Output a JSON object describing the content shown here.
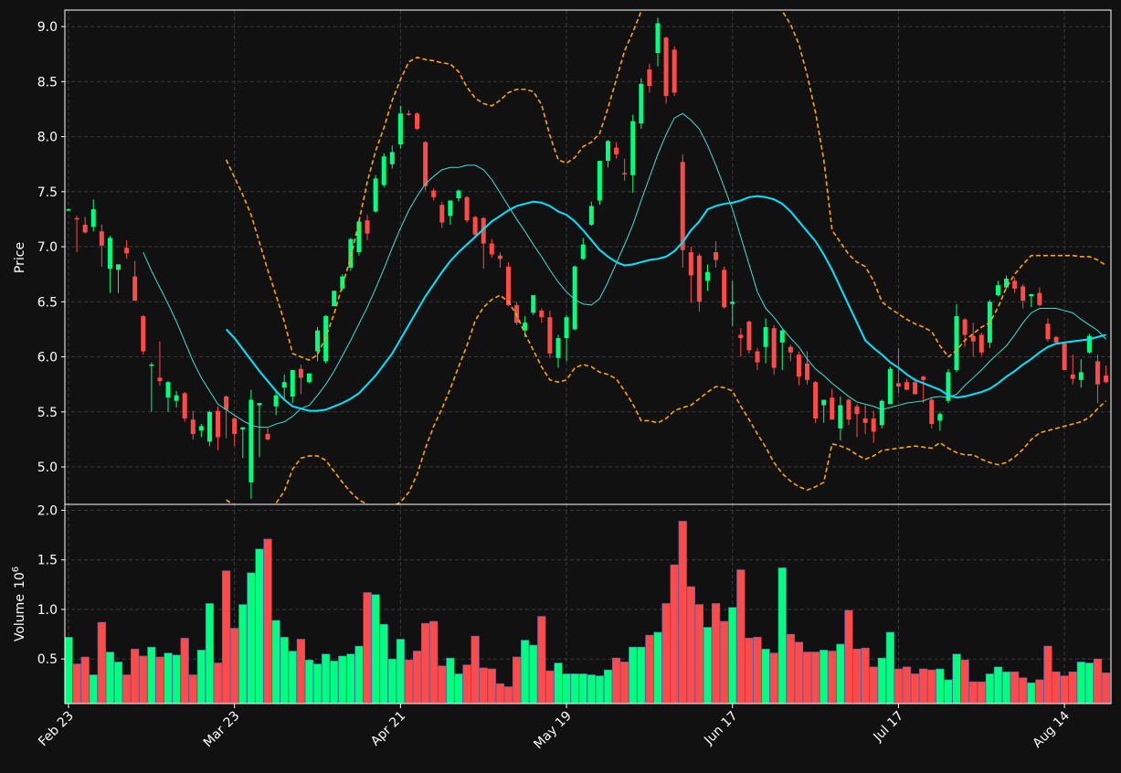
{
  "chart_data": {
    "type": "candlestick",
    "colors": {
      "background": "#111111",
      "up": "#00ff7f",
      "down": "#ff4a4a",
      "ma_short": "#40e0d0",
      "ma_long": "#00e5ff",
      "bands": "#ffa500",
      "grid": "#3a3a3a",
      "axis": "#ffffff"
    },
    "price_panel": {
      "ylabel": "Price",
      "ylim": [
        4.66,
        9.15
      ],
      "yticks": [
        "5.0",
        "5.5",
        "6.0",
        "6.5",
        "7.0",
        "7.5",
        "8.0",
        "8.5",
        "9.0"
      ],
      "grid": true
    },
    "volume_panel": {
      "ylabel": "Volume",
      "ylabel_exponent": "10",
      "ylabel_power": "6",
      "ylim": [
        0.05,
        2.06
      ],
      "yticks": [
        "0.5",
        "1.0",
        "1.5",
        "2.0"
      ],
      "grid": true
    },
    "x_axis": {
      "tick_labels": [
        "Feb 23",
        "Mar 23",
        "Apr 21",
        "May 19",
        "Jun 17",
        "Jul 17",
        "Aug 14"
      ],
      "tick_indices": [
        0,
        20,
        40,
        60,
        80,
        100,
        120
      ]
    },
    "candles": [
      [
        7.34,
        7.35,
        7.33,
        7.34
      ],
      [
        7.26,
        7.28,
        6.95,
        7.25
      ],
      [
        7.2,
        7.27,
        7.12,
        7.13
      ],
      [
        7.18,
        7.43,
        7.14,
        7.34
      ],
      [
        7.14,
        7.2,
        6.82,
        7.01
      ],
      [
        6.8,
        7.1,
        6.58,
        7.08
      ],
      [
        6.79,
        6.84,
        6.58,
        6.84
      ],
      [
        6.99,
        7.06,
        6.89,
        6.94
      ],
      [
        6.73,
        6.87,
        6.52,
        6.51
      ],
      [
        6.37,
        6.38,
        6.02,
        6.05
      ],
      [
        5.93,
        5.95,
        5.5,
        5.93
      ],
      [
        5.81,
        6.14,
        5.74,
        5.78
      ],
      [
        5.63,
        5.78,
        5.5,
        5.77
      ],
      [
        5.6,
        5.69,
        5.54,
        5.65
      ],
      [
        5.67,
        5.68,
        5.41,
        5.44
      ],
      [
        5.43,
        5.51,
        5.25,
        5.3
      ],
      [
        5.33,
        5.39,
        5.27,
        5.37
      ],
      [
        5.23,
        5.51,
        5.19,
        5.5
      ],
      [
        5.51,
        5.55,
        5.15,
        5.27
      ],
      [
        5.64,
        5.65,
        5.26,
        5.52
      ],
      [
        5.44,
        5.45,
        5.19,
        5.3
      ],
      [
        5.34,
        5.36,
        5.08,
        5.36
      ],
      [
        4.86,
        5.7,
        4.71,
        5.61
      ],
      [
        5.56,
        5.57,
        5.09,
        5.58
      ],
      [
        5.3,
        5.35,
        5.24,
        5.25
      ],
      [
        5.55,
        5.7,
        5.47,
        5.65
      ],
      [
        5.72,
        5.84,
        5.6,
        5.77
      ],
      [
        5.64,
        5.88,
        5.58,
        5.88
      ],
      [
        5.89,
        5.93,
        5.66,
        5.81
      ],
      [
        5.77,
        5.84,
        5.76,
        5.85
      ],
      [
        6.05,
        6.27,
        5.96,
        6.24
      ],
      [
        5.96,
        6.38,
        5.94,
        6.37
      ],
      [
        6.46,
        6.6,
        6.46,
        6.6
      ],
      [
        6.62,
        6.75,
        6.6,
        6.73
      ],
      [
        6.81,
        7.08,
        6.78,
        7.07
      ],
      [
        6.95,
        7.24,
        6.92,
        7.23
      ],
      [
        7.24,
        7.29,
        7.06,
        7.12
      ],
      [
        7.32,
        7.65,
        7.31,
        7.62
      ],
      [
        7.56,
        7.85,
        7.54,
        7.82
      ],
      [
        7.75,
        7.92,
        7.71,
        7.86
      ],
      [
        7.93,
        8.28,
        7.89,
        8.21
      ],
      [
        8.21,
        8.24,
        8.19,
        8.2
      ],
      [
        8.21,
        8.22,
        8.06,
        8.07
      ],
      [
        7.95,
        7.96,
        7.51,
        7.55
      ],
      [
        7.51,
        7.53,
        7.42,
        7.45
      ],
      [
        7.38,
        7.41,
        7.17,
        7.22
      ],
      [
        7.28,
        7.42,
        7.2,
        7.42
      ],
      [
        7.44,
        7.52,
        7.41,
        7.51
      ],
      [
        7.45,
        7.46,
        7.22,
        7.24
      ],
      [
        7.27,
        7.28,
        7.08,
        7.11
      ],
      [
        7.26,
        7.27,
        6.8,
        7.03
      ],
      [
        7.03,
        7.07,
        6.9,
        6.93
      ],
      [
        6.92,
        6.95,
        6.81,
        6.89
      ],
      [
        6.82,
        6.86,
        6.46,
        6.47
      ],
      [
        6.47,
        6.5,
        6.29,
        6.31
      ],
      [
        6.24,
        6.37,
        6.18,
        6.31
      ],
      [
        6.4,
        6.56,
        6.38,
        6.56
      ],
      [
        6.42,
        6.44,
        6.31,
        6.36
      ],
      [
        6.36,
        6.42,
        5.99,
        6.03
      ],
      [
        5.99,
        6.2,
        5.9,
        6.17
      ],
      [
        6.17,
        6.38,
        5.96,
        6.36
      ],
      [
        6.25,
        6.83,
        6.24,
        6.82
      ],
      [
        6.89,
        7.08,
        6.88,
        7.02
      ],
      [
        7.2,
        7.41,
        7.19,
        7.37
      ],
      [
        7.42,
        7.78,
        7.38,
        7.78
      ],
      [
        7.78,
        7.97,
        7.72,
        7.96
      ],
      [
        7.9,
        7.95,
        7.8,
        7.84
      ],
      [
        7.67,
        7.8,
        7.6,
        7.66
      ],
      [
        7.65,
        8.2,
        7.49,
        8.14
      ],
      [
        8.12,
        8.53,
        8.07,
        8.48
      ],
      [
        8.61,
        8.66,
        8.4,
        8.46
      ],
      [
        8.76,
        9.08,
        8.64,
        9.03
      ],
      [
        8.9,
        8.91,
        8.3,
        8.37
      ],
      [
        8.79,
        8.82,
        8.37,
        8.4
      ],
      [
        7.77,
        7.84,
        6.81,
        6.97
      ],
      [
        6.95,
        7.0,
        6.49,
        6.74
      ],
      [
        6.92,
        6.94,
        6.41,
        6.5
      ],
      [
        6.69,
        6.84,
        6.6,
        6.77
      ],
      [
        6.95,
        7.05,
        6.81,
        6.88
      ],
      [
        6.79,
        6.82,
        6.44,
        6.45
      ],
      [
        6.48,
        6.69,
        6.28,
        6.5
      ],
      [
        6.2,
        6.26,
        6.0,
        6.17
      ],
      [
        6.32,
        6.33,
        6.03,
        6.06
      ],
      [
        6.05,
        6.08,
        5.88,
        5.95
      ],
      [
        6.09,
        6.35,
        5.94,
        6.27
      ],
      [
        6.26,
        6.29,
        5.84,
        5.9
      ],
      [
        6.13,
        6.25,
        5.88,
        6.24
      ],
      [
        6.09,
        6.11,
        5.96,
        6.04
      ],
      [
        6.02,
        6.05,
        5.74,
        5.82
      ],
      [
        5.94,
        6.05,
        5.75,
        5.79
      ],
      [
        5.77,
        5.78,
        5.4,
        5.44
      ],
      [
        5.56,
        5.6,
        5.4,
        5.61
      ],
      [
        5.63,
        5.71,
        5.44,
        5.43
      ],
      [
        5.35,
        5.64,
        5.24,
        5.56
      ],
      [
        5.61,
        5.62,
        5.38,
        5.43
      ],
      [
        5.55,
        5.57,
        5.27,
        5.48
      ],
      [
        5.44,
        5.56,
        5.3,
        5.4
      ],
      [
        5.44,
        5.51,
        5.22,
        5.32
      ],
      [
        5.38,
        5.61,
        5.35,
        5.6
      ],
      [
        5.57,
        5.91,
        5.57,
        5.89
      ],
      [
        5.76,
        6.08,
        5.67,
        5.73
      ],
      [
        5.77,
        5.8,
        5.71,
        5.7
      ],
      [
        5.77,
        5.81,
        5.7,
        5.66
      ],
      [
        5.82,
        5.83,
        5.58,
        5.79
      ],
      [
        5.61,
        5.63,
        5.35,
        5.39
      ],
      [
        5.42,
        5.5,
        5.33,
        5.48
      ],
      [
        5.6,
        5.89,
        5.58,
        5.86
      ],
      [
        5.88,
        6.48,
        5.86,
        6.37
      ],
      [
        6.34,
        6.35,
        6.09,
        6.2
      ],
      [
        6.19,
        6.31,
        6.0,
        6.14
      ],
      [
        6.2,
        6.22,
        6.01,
        6.04
      ],
      [
        6.13,
        6.52,
        6.08,
        6.5
      ],
      [
        6.56,
        6.69,
        6.55,
        6.65
      ],
      [
        6.63,
        6.74,
        6.62,
        6.71
      ],
      [
        6.69,
        6.72,
        6.58,
        6.62
      ],
      [
        6.64,
        6.66,
        6.44,
        6.51
      ],
      [
        6.55,
        6.57,
        6.45,
        6.57
      ],
      [
        6.58,
        6.63,
        6.46,
        6.47
      ],
      [
        6.3,
        6.35,
        6.14,
        6.16
      ],
      [
        6.18,
        6.19,
        6.12,
        6.13
      ],
      [
        6.12,
        6.13,
        5.9,
        5.88
      ],
      [
        5.84,
        6.02,
        5.75,
        5.8
      ],
      [
        5.79,
        5.98,
        5.72,
        5.86
      ],
      [
        6.04,
        6.21,
        6.03,
        6.19
      ],
      [
        5.96,
        6.02,
        5.58,
        5.75
      ],
      [
        5.83,
        5.92,
        5.76,
        5.77
      ]
    ],
    "volume": [
      0.72,
      0.45,
      0.52,
      0.34,
      0.87,
      0.57,
      0.47,
      0.34,
      0.6,
      0.53,
      0.62,
      0.52,
      0.56,
      0.54,
      0.71,
      0.34,
      0.59,
      1.06,
      0.46,
      1.39,
      0.81,
      1.05,
      1.37,
      1.61,
      1.71,
      0.89,
      0.72,
      0.58,
      0.7,
      0.49,
      0.45,
      0.55,
      0.48,
      0.53,
      0.55,
      0.63,
      1.17,
      1.15,
      0.85,
      0.5,
      0.7,
      0.49,
      0.58,
      0.86,
      0.88,
      0.43,
      0.51,
      0.35,
      0.44,
      0.73,
      0.41,
      0.4,
      0.25,
      0.22,
      0.52,
      0.69,
      0.64,
      0.93,
      0.38,
      0.46,
      0.35,
      0.35,
      0.35,
      0.34,
      0.33,
      0.39,
      0.51,
      0.47,
      0.62,
      0.62,
      0.74,
      0.77,
      1.06,
      1.45,
      1.89,
      1.23,
      1.05,
      0.82,
      1.06,
      0.88,
      1.02,
      1.4,
      0.71,
      0.72,
      0.6,
      0.56,
      1.42,
      0.75,
      0.67,
      0.57,
      0.57,
      0.59,
      0.58,
      0.65,
      0.99,
      0.6,
      0.61,
      0.42,
      0.51,
      0.77,
      0.4,
      0.42,
      0.35,
      0.4,
      0.39,
      0.4,
      0.29,
      0.55,
      0.49,
      0.27,
      0.27,
      0.35,
      0.42,
      0.37,
      0.37,
      0.31,
      0.26,
      0.29,
      0.63,
      0.37,
      0.33,
      0.37,
      0.47,
      0.46,
      0.5,
      0.36
    ],
    "ma_short": [
      null,
      null,
      null,
      null,
      null,
      null,
      null,
      null,
      null,
      6.95,
      6.78,
      6.63,
      6.48,
      6.32,
      6.14,
      5.96,
      5.81,
      5.69,
      5.57,
      5.52,
      5.47,
      5.42,
      5.38,
      5.36,
      5.36,
      5.39,
      5.41,
      5.46,
      5.53,
      5.56,
      5.65,
      5.75,
      5.87,
      6.01,
      6.15,
      6.3,
      6.45,
      6.62,
      6.8,
      6.99,
      7.17,
      7.33,
      7.46,
      7.57,
      7.64,
      7.7,
      7.72,
      7.72,
      7.74,
      7.74,
      7.7,
      7.61,
      7.49,
      7.37,
      7.25,
      7.14,
      7.02,
      6.91,
      6.79,
      6.68,
      6.59,
      6.52,
      6.48,
      6.47,
      6.53,
      6.68,
      6.85,
      7.02,
      7.2,
      7.42,
      7.63,
      7.84,
      8.02,
      8.17,
      8.21,
      8.15,
      8.07,
      7.92,
      7.74,
      7.54,
      7.34,
      7.09,
      6.84,
      6.59,
      6.44,
      6.36,
      6.26,
      6.17,
      6.09,
      5.98,
      5.89,
      5.83,
      5.76,
      5.7,
      5.64,
      5.59,
      5.57,
      5.55,
      5.52,
      5.54,
      5.56,
      5.58,
      5.59,
      5.6,
      5.63,
      5.64,
      5.63,
      5.66,
      5.74,
      5.81,
      5.88,
      5.96,
      6.03,
      6.1,
      6.2,
      6.31,
      6.4,
      6.44,
      6.44,
      6.44,
      6.42,
      6.4,
      6.34,
      6.29,
      6.24,
      6.16
    ],
    "ma_long": [
      null,
      null,
      null,
      null,
      null,
      null,
      null,
      null,
      null,
      null,
      null,
      null,
      null,
      null,
      null,
      null,
      null,
      null,
      null,
      6.25,
      6.17,
      6.07,
      5.97,
      5.87,
      5.78,
      5.69,
      5.61,
      5.55,
      5.53,
      5.51,
      5.51,
      5.52,
      5.55,
      5.58,
      5.62,
      5.67,
      5.75,
      5.83,
      5.93,
      6.03,
      6.16,
      6.29,
      6.42,
      6.55,
      6.66,
      6.77,
      6.87,
      6.95,
      7.02,
      7.09,
      7.16,
      7.23,
      7.28,
      7.33,
      7.37,
      7.39,
      7.41,
      7.4,
      7.37,
      7.32,
      7.29,
      7.23,
      7.15,
      7.06,
      6.97,
      6.91,
      6.86,
      6.83,
      6.84,
      6.86,
      6.88,
      6.89,
      6.91,
      6.96,
      7.04,
      7.15,
      7.23,
      7.34,
      7.37,
      7.39,
      7.4,
      7.42,
      7.45,
      7.46,
      7.45,
      7.43,
      7.39,
      7.32,
      7.23,
      7.14,
      7.05,
      6.93,
      6.79,
      6.63,
      6.47,
      6.31,
      6.15,
      6.08,
      6.02,
      5.95,
      5.9,
      5.84,
      5.79,
      5.76,
      5.73,
      5.7,
      5.65,
      5.63,
      5.64,
      5.66,
      5.68,
      5.71,
      5.76,
      5.82,
      5.87,
      5.93,
      5.98,
      6.04,
      6.09,
      6.12,
      6.13,
      6.14,
      6.15,
      6.16,
      6.18,
      6.2
    ],
    "band_upper": [
      null,
      null,
      null,
      null,
      null,
      null,
      null,
      null,
      null,
      null,
      null,
      null,
      null,
      null,
      null,
      null,
      null,
      null,
      null,
      7.79,
      7.63,
      7.47,
      7.29,
      7.04,
      6.79,
      6.56,
      6.32,
      6.03,
      6.0,
      5.97,
      6.02,
      6.18,
      6.39,
      6.65,
      6.9,
      7.23,
      7.59,
      7.87,
      8.08,
      8.33,
      8.52,
      8.68,
      8.72,
      8.7,
      8.69,
      8.67,
      8.66,
      8.59,
      8.45,
      8.35,
      8.3,
      8.28,
      8.33,
      8.4,
      8.43,
      8.43,
      8.41,
      8.29,
      8.01,
      7.79,
      7.76,
      7.81,
      7.91,
      7.95,
      8.03,
      8.26,
      8.52,
      8.78,
      8.95,
      9.14,
      9.37,
      9.48,
      9.51,
      9.51,
      9.5,
      9.49,
      9.47,
      9.45,
      9.43,
      9.4,
      9.38,
      9.34,
      9.3,
      9.27,
      9.24,
      9.2,
      9.14,
      9.02,
      8.84,
      8.56,
      8.22,
      7.79,
      7.15,
      7.04,
      6.93,
      6.86,
      6.82,
      6.69,
      6.5,
      6.44,
      6.39,
      6.34,
      6.3,
      6.27,
      6.23,
      6.1,
      6.0,
      6.06,
      6.15,
      6.21,
      6.27,
      6.31,
      6.45,
      6.63,
      6.75,
      6.84,
      6.92,
      6.92,
      6.92,
      6.92,
      6.92,
      6.92,
      6.91,
      6.91,
      6.88,
      6.83
    ],
    "band_lower": [
      null,
      null,
      null,
      null,
      null,
      null,
      null,
      null,
      null,
      null,
      null,
      null,
      null,
      null,
      null,
      null,
      null,
      null,
      null,
      4.7,
      4.65,
      4.6,
      4.55,
      4.5,
      4.55,
      4.67,
      4.78,
      4.98,
      5.08,
      5.1,
      5.1,
      5.06,
      4.96,
      4.86,
      4.77,
      4.7,
      4.66,
      4.64,
      4.64,
      4.64,
      4.68,
      4.77,
      4.93,
      5.17,
      5.37,
      5.53,
      5.71,
      5.91,
      6.1,
      6.33,
      6.45,
      6.52,
      6.56,
      6.5,
      6.38,
      6.21,
      6.06,
      5.91,
      5.79,
      5.77,
      5.79,
      5.9,
      5.93,
      5.91,
      5.86,
      5.84,
      5.8,
      5.69,
      5.57,
      5.42,
      5.42,
      5.4,
      5.44,
      5.51,
      5.54,
      5.56,
      5.62,
      5.68,
      5.73,
      5.72,
      5.69,
      5.55,
      5.43,
      5.3,
      5.18,
      5.04,
      4.94,
      4.87,
      4.82,
      4.79,
      4.82,
      4.86,
      5.21,
      5.19,
      5.16,
      5.11,
      5.07,
      5.1,
      5.15,
      5.16,
      5.17,
      5.18,
      5.19,
      5.18,
      5.17,
      5.22,
      5.17,
      5.13,
      5.11,
      5.11,
      5.07,
      5.04,
      5.02,
      5.04,
      5.09,
      5.16,
      5.25,
      5.31,
      5.33,
      5.35,
      5.37,
      5.39,
      5.41,
      5.45,
      5.53,
      5.6
    ]
  }
}
